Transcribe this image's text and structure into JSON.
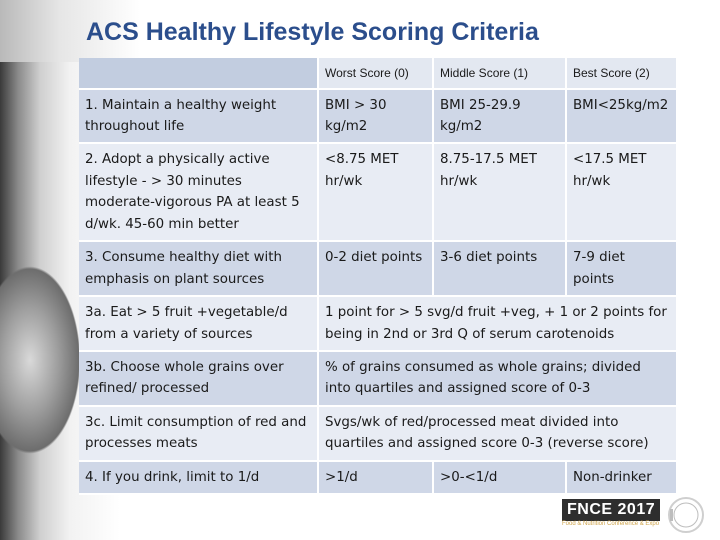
{
  "title": "ACS Healthy Lifestyle Scoring Criteria",
  "columns": [
    "",
    "Worst Score (0)",
    "Middle Score (1)",
    "Best Score (2)"
  ],
  "rows": [
    {
      "criterion": "1. Maintain a healthy weight throughout life",
      "worst": "BMI > 30 kg/m2",
      "middle": "BMI 25-29.9 kg/m2",
      "best": "BMI<25kg/m2"
    },
    {
      "criterion": "2. Adopt a physically active lifestyle - > 30 minutes moderate-vigorous PA at least 5 d/wk. 45-60 min better",
      "worst": "<8.75 MET hr/wk",
      "middle": "8.75-17.5 MET hr/wk",
      "best": "<17.5 MET hr/wk"
    },
    {
      "criterion": "3. Consume healthy diet with emphasis on plant sources",
      "worst": "0-2 diet points",
      "middle": "3-6 diet points",
      "best": "7-9 diet points"
    },
    {
      "criterion": "3a. Eat > 5 fruit +vegetable/d from a variety of sources",
      "merged": "1 point for > 5 svg/d fruit +veg, + 1 or 2 points for being in 2nd or 3rd Q of serum carotenoids"
    },
    {
      "criterion": "3b. Choose whole grains over refined/ processed",
      "merged": "% of grains consumed as whole grains; divided into quartiles and assigned score of 0-3"
    },
    {
      "criterion": "3c. Limit consumption of red and processes meats",
      "merged": "Svgs/wk of red/processed meat divided into quartiles and assigned score 0-3 (reverse score)"
    },
    {
      "criterion": "4. If you drink, limit to 1/d",
      "worst": ">1/d",
      "middle": ">0-<1/d",
      "best": "Non-drinker"
    }
  ],
  "logo": {
    "brand": "FNCE",
    "year": "2017",
    "tagline": "Food & Nutrition Conference & Expo"
  },
  "colors": {
    "title": "#2b4e8c",
    "row_light": "#e8ecf4",
    "row_dark": "#cfd7e7",
    "header_blank": "#c2cde0"
  }
}
